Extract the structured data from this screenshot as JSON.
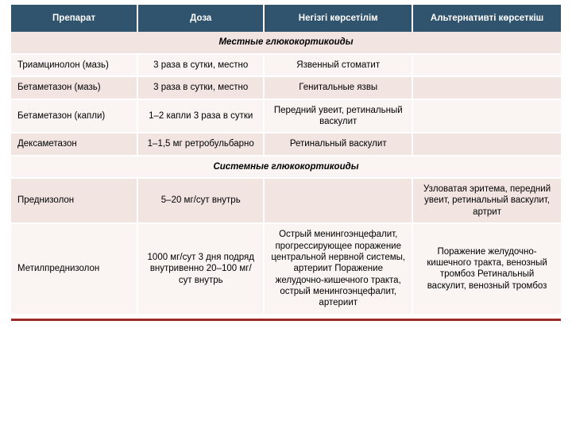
{
  "colors": {
    "header_bg": "#30546e",
    "header_fg": "#ffffff",
    "band_a": "#f2e4e1",
    "band_b": "#faf4f2",
    "rule": "#9b2b2b"
  },
  "headers": {
    "c1": "Препарат",
    "c2": "Доза",
    "c3": "Негізгі көрсетілім",
    "c4": "Альтернативті көрсеткіш"
  },
  "sections": {
    "s1": "Местные глюкокортикоиды",
    "s2": "Системные глюкокортикоиды"
  },
  "rows": {
    "r1": {
      "c1": "Триамцинолон (мазь)",
      "c2": "3 раза в сутки, местно",
      "c3": "Язвенный стоматит",
      "c4": ""
    },
    "r2": {
      "c1": "Бетаметазон (мазь)",
      "c2": "3 раза в сутки, местно",
      "c3": "Генитальные язвы",
      "c4": ""
    },
    "r3": {
      "c1": "Бетаметазон (капли)",
      "c2": "1–2 капли 3 раза в сутки",
      "c3": "Передний увеит, ретинальный васкулит",
      "c4": ""
    },
    "r4": {
      "c1": "Дексаметазон",
      "c2": "1–1,5 мг ретробульбарно",
      "c3": "Ретинальный васкулит",
      "c4": ""
    },
    "r5": {
      "c1": "Преднизолон",
      "c2": "5–20 мг/сут внутрь",
      "c3": "",
      "c4": "Узловатая эритема, передний увеит, ретинальный васкулит, артрит"
    },
    "r6": {
      "c1": "Метилпреднизолон",
      "c2": "1000 мг/сут 3 дня подряд внутривенно 20–100 мг/сут внутрь",
      "c3": "Острый менингоэнцефалит, прогрессирующее поражение центральной нервной системы, артериит Поражение желудочно-кишечного тракта, острый менингоэнцефалит, артериит",
      "c4": "Поражение желудочно-кишечного тракта, венозный тромбоз Ретинальный васкулит, венозный тромбоз"
    }
  }
}
